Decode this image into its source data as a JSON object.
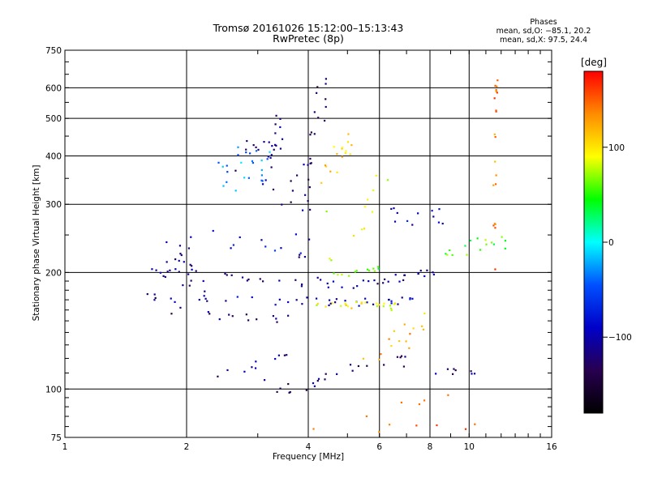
{
  "chart_data": {
    "type": "scatter",
    "title": "Tromsø 20161026 15:12:00–15:13:43",
    "subtitle": "RwPretec (8p)",
    "xlabel": "Frequency [MHz]",
    "ylabel": "Stationary phase Virtual Height [km]",
    "x_scale": "log",
    "y_scale": "log",
    "xlim": [
      1,
      16
    ],
    "ylim": [
      75,
      750
    ],
    "x_ticks": [
      1,
      2,
      4,
      6,
      8,
      10,
      16
    ],
    "x_tick_labels": [
      "1",
      "2",
      "4",
      "6",
      "8",
      "10",
      "16"
    ],
    "y_ticks": [
      75,
      100,
      200,
      300,
      400,
      500,
      600,
      750
    ],
    "y_tick_labels": [
      "75",
      "100",
      "200",
      "300",
      "400",
      "500",
      "600",
      "750"
    ],
    "grid": true,
    "stats": {
      "heading": "Phases",
      "line_o": "mean, sd,O: −85.1, 20.2",
      "line_x": "mean, sd,X:  97.5, 24.4"
    },
    "colorbar": {
      "label": "[deg]",
      "range": [
        -180,
        180
      ],
      "ticks": [
        100,
        0,
        -100
      ],
      "tick_labels": [
        "100",
        "0",
        "−100"
      ],
      "colors": [
        "#ff0000",
        "#ff8c00",
        "#ffff00",
        "#00ff00",
        "#00ffff",
        "#0050ff",
        "#0000c8",
        "#280050",
        "#000000"
      ]
    },
    "series": [
      {
        "name": "O",
        "mean_deg": -85.1,
        "sd_deg": 20.2
      },
      {
        "name": "X",
        "mean_deg": 97.5,
        "sd_deg": 24.4
      }
    ],
    "traces": [
      {
        "x": [
          1.65,
          1.8,
          2.0,
          2.3,
          2.6,
          3.0,
          3.5,
          4.0,
          4.5,
          5.0,
          5.5,
          6.0,
          6.5,
          7.0,
          7.5,
          8.0
        ],
        "y": [
          195,
          200,
          200,
          196,
          194,
          191,
          190,
          189,
          188,
          187,
          188,
          190,
          192,
          195,
          197,
          200
        ],
        "phase": -110,
        "n": 3,
        "jx": 0.015,
        "jy": 0.012
      },
      {
        "x": [
          1.7,
          2.0,
          2.5,
          3.0,
          3.5,
          4.0,
          4.5,
          5.0,
          5.5,
          6.0,
          6.5,
          7.0
        ],
        "y": [
          170,
          171,
          170,
          169,
          168,
          169,
          168,
          167,
          167,
          168,
          169,
          170
        ],
        "phase": -100,
        "n": 3,
        "jx": 0.015,
        "jy": 0.01
      },
      {
        "x": [
          1.8,
          2.0,
          2.3,
          2.6,
          2.9,
          3.2,
          3.5
        ],
        "y": [
          160,
          158,
          157,
          155,
          154,
          153,
          152
        ],
        "phase": -120,
        "n": 2,
        "jx": 0.02,
        "jy": 0.012
      },
      {
        "x": [
          1.65,
          1.75,
          1.85,
          1.95,
          2.05,
          2.15
        ],
        "y": [
          185,
          205,
          225,
          245,
          215,
          180
        ],
        "phase": -120,
        "n": 4,
        "jx": 0.03,
        "jy": 0.06
      },
      {
        "x": [
          2.3,
          2.6,
          3.0,
          3.4,
          3.7
        ],
        "y": [
          245,
          235,
          230,
          233,
          238
        ],
        "phase": -80,
        "n": 2,
        "jx": 0.02,
        "jy": 0.03
      },
      {
        "x": [
          2.4,
          2.6,
          2.8,
          3.0
        ],
        "y": [
          340,
          370,
          385,
          360
        ],
        "phase": -30,
        "n": 6,
        "jx": 0.03,
        "jy": 0.06
      },
      {
        "x": [
          3.1,
          3.2,
          3.3,
          3.35
        ],
        "y": [
          310,
          380,
          430,
          470
        ],
        "phase": -110,
        "n": 4,
        "jx": 0.015,
        "jy": 0.05
      },
      {
        "x": [
          2.7,
          2.9,
          3.1
        ],
        "y": [
          395,
          400,
          405
        ],
        "phase": -125,
        "n": 3,
        "jx": 0.02,
        "jy": 0.04
      },
      {
        "x": [
          3.3,
          3.6,
          3.9,
          4.1,
          4.2,
          4.3,
          4.35
        ],
        "y": [
          310,
          330,
          360,
          420,
          480,
          540,
          600
        ],
        "phase": -120,
        "n": 3,
        "jx": 0.015,
        "jy": 0.03
      },
      {
        "x": [
          3.9,
          3.95,
          4.0,
          4.02
        ],
        "y": [
          220,
          260,
          300,
          350
        ],
        "phase": -110,
        "n": 3,
        "jx": 0.015,
        "jy": 0.05
      },
      {
        "x": [
          4.4,
          4.6,
          4.8,
          5.0
        ],
        "y": [
          360,
          375,
          400,
          440
        ],
        "phase": 110,
        "n": 4,
        "jx": 0.02,
        "jy": 0.03
      },
      {
        "x": [
          4.6,
          5.0,
          5.4,
          5.8
        ],
        "y": [
          240,
          260,
          280,
          300
        ],
        "phase": 80,
        "n": 3,
        "jx": 0.04,
        "jy": 0.08
      },
      {
        "x": [
          4.6,
          5.0,
          5.5,
          6.0
        ],
        "y": [
          200,
          200,
          202,
          203
        ],
        "phase": 55,
        "n": 3,
        "jx": 0.02,
        "jy": 0.01
      },
      {
        "x": [
          4.2,
          4.6,
          5.0,
          5.5,
          6.0,
          6.5
        ],
        "y": [
          163,
          165,
          166,
          165,
          164,
          163
        ],
        "phase": 95,
        "n": 4,
        "jx": 0.02,
        "jy": 0.01
      },
      {
        "x": [
          5.5,
          6.0,
          6.5,
          7.0,
          7.5
        ],
        "y": [
          125,
          130,
          135,
          140,
          145
        ],
        "phase": 120,
        "n": 3,
        "jx": 0.02,
        "jy": 0.04
      },
      {
        "x": [
          6.0,
          6.5,
          7.0,
          7.5,
          8.0,
          8.5
        ],
        "y": [
          285,
          280,
          278,
          276,
          278,
          280
        ],
        "phase": -90,
        "n": 2,
        "jx": 0.02,
        "jy": 0.02
      },
      {
        "x": [
          8.5,
          9.0,
          9.5,
          10.0,
          10.5,
          11.0,
          11.5,
          12.0
        ],
        "y": [
          225,
          228,
          230,
          232,
          235,
          236,
          237,
          238
        ],
        "phase": 55,
        "n": 2,
        "jx": 0.015,
        "jy": 0.02
      },
      {
        "x": [
          8.5,
          9.0,
          9.5,
          10.0
        ],
        "y": [
          112,
          111,
          111,
          112
        ],
        "phase": -110,
        "n": 2,
        "jx": 0.015,
        "jy": 0.01
      },
      {
        "x": [
          3.2,
          3.5,
          3.8,
          4.0,
          4.3,
          5.0,
          6.0,
          7.0
        ],
        "y": [
          103,
          100,
          101,
          104,
          108,
          112,
          115,
          118
        ],
        "phase": -120,
        "n": 3,
        "jx": 0.02,
        "jy": 0.015
      },
      {
        "x": [
          2.3,
          2.6,
          2.9,
          3.2,
          3.5
        ],
        "y": [
          112,
          114,
          116,
          118,
          120
        ],
        "phase": -110,
        "n": 2,
        "jx": 0.02,
        "jy": 0.02
      },
      {
        "x": [
          11.5,
          11.55,
          11.6,
          11.65
        ],
        "y": [
          200,
          300,
          450,
          600
        ],
        "phase": 140,
        "n": 5,
        "jx": 0.004,
        "jy": 0.05
      },
      {
        "x": [
          4.5,
          5.5,
          6.5,
          7.5,
          8.5,
          9.5
        ],
        "y": [
          85,
          80,
          82,
          90,
          88,
          84
        ],
        "phase": 150,
        "n": 2,
        "jx": 0.04,
        "jy": 0.05
      }
    ]
  }
}
